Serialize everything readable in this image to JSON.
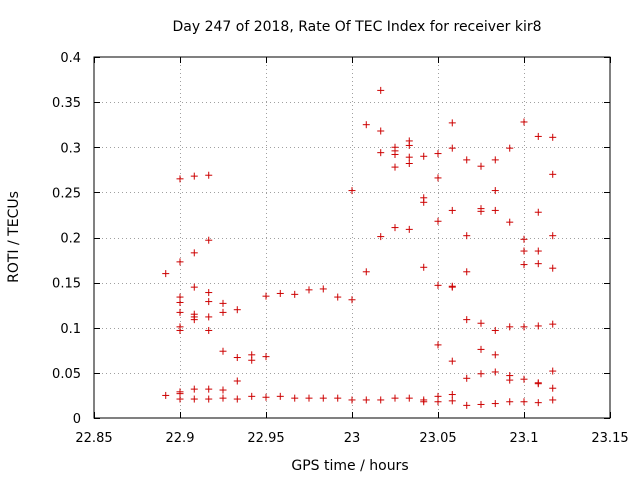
{
  "chart_data": {
    "type": "scatter",
    "title": "Day 247 of 2018, Rate Of TEC Index for receiver kir8",
    "xlabel": "GPS time / hours",
    "ylabel": "ROTI / TECUs",
    "xlim": [
      22.85,
      23.15
    ],
    "ylim": [
      0,
      0.4
    ],
    "x_ticks": [
      22.85,
      22.9,
      22.95,
      23.0,
      23.05,
      23.1,
      23.15
    ],
    "x_tick_labels": [
      "22.85",
      "22.9",
      "22.95",
      "23",
      "23.05",
      "23.1",
      "23.15"
    ],
    "y_ticks": [
      0,
      0.05,
      0.1,
      0.15,
      0.2,
      0.25,
      0.3,
      0.35,
      0.4
    ],
    "y_tick_labels": [
      "0",
      "0.05",
      "0.1",
      "0.15",
      "0.2",
      "0.25",
      "0.3",
      "0.35",
      "0.4"
    ],
    "grid": true,
    "marker": "+",
    "marker_color": "#cc0000",
    "series": [
      {
        "name": "kir8",
        "points": [
          [
            22.8917,
            0.16
          ],
          [
            22.8917,
            0.025
          ],
          [
            22.9,
            0.265
          ],
          [
            22.9,
            0.173
          ],
          [
            22.9,
            0.134
          ],
          [
            22.9,
            0.128
          ],
          [
            22.9,
            0.117
          ],
          [
            22.9,
            0.101
          ],
          [
            22.9,
            0.097
          ],
          [
            22.9,
            0.029
          ],
          [
            22.9,
            0.027
          ],
          [
            22.9,
            0.021
          ],
          [
            22.9083,
            0.268
          ],
          [
            22.9083,
            0.183
          ],
          [
            22.9083,
            0.145
          ],
          [
            22.9083,
            0.115
          ],
          [
            22.9083,
            0.112
          ],
          [
            22.9083,
            0.109
          ],
          [
            22.9083,
            0.032
          ],
          [
            22.9083,
            0.021
          ],
          [
            22.9167,
            0.269
          ],
          [
            22.9167,
            0.197
          ],
          [
            22.9167,
            0.139
          ],
          [
            22.9167,
            0.129
          ],
          [
            22.9167,
            0.112
          ],
          [
            22.9167,
            0.097
          ],
          [
            22.9167,
            0.032
          ],
          [
            22.9167,
            0.021
          ],
          [
            22.925,
            0.127
          ],
          [
            22.925,
            0.117
          ],
          [
            22.925,
            0.074
          ],
          [
            22.925,
            0.031
          ],
          [
            22.925,
            0.022
          ],
          [
            22.9333,
            0.12
          ],
          [
            22.9333,
            0.067
          ],
          [
            22.9333,
            0.041
          ],
          [
            22.9333,
            0.021
          ],
          [
            22.9417,
            0.07
          ],
          [
            22.9417,
            0.064
          ],
          [
            22.9417,
            0.024
          ],
          [
            22.95,
            0.135
          ],
          [
            22.95,
            0.068
          ],
          [
            22.95,
            0.023
          ],
          [
            22.9583,
            0.138
          ],
          [
            22.9583,
            0.024
          ],
          [
            22.9667,
            0.137
          ],
          [
            22.9667,
            0.022
          ],
          [
            22.975,
            0.142
          ],
          [
            22.975,
            0.022
          ],
          [
            22.9833,
            0.143
          ],
          [
            22.9833,
            0.022
          ],
          [
            22.9917,
            0.134
          ],
          [
            22.9917,
            0.022
          ],
          [
            23.0,
            0.252
          ],
          [
            23.0,
            0.131
          ],
          [
            23.0,
            0.02
          ],
          [
            23.0083,
            0.325
          ],
          [
            23.0083,
            0.162
          ],
          [
            23.0083,
            0.02
          ],
          [
            23.0167,
            0.363
          ],
          [
            23.0167,
            0.318
          ],
          [
            23.0167,
            0.294
          ],
          [
            23.0167,
            0.201
          ],
          [
            23.0167,
            0.02
          ],
          [
            23.025,
            0.3
          ],
          [
            23.025,
            0.296
          ],
          [
            23.025,
            0.292
          ],
          [
            23.025,
            0.278
          ],
          [
            23.025,
            0.211
          ],
          [
            23.025,
            0.022
          ],
          [
            23.0333,
            0.307
          ],
          [
            23.0333,
            0.302
          ],
          [
            23.0333,
            0.289
          ],
          [
            23.0333,
            0.282
          ],
          [
            23.0333,
            0.209
          ],
          [
            23.0333,
            0.022
          ],
          [
            23.0417,
            0.29
          ],
          [
            23.0417,
            0.244
          ],
          [
            23.0417,
            0.239
          ],
          [
            23.0417,
            0.167
          ],
          [
            23.0417,
            0.02
          ],
          [
            23.0417,
            0.018
          ],
          [
            23.05,
            0.293
          ],
          [
            23.05,
            0.266
          ],
          [
            23.05,
            0.218
          ],
          [
            23.05,
            0.147
          ],
          [
            23.05,
            0.081
          ],
          [
            23.05,
            0.024
          ],
          [
            23.05,
            0.018
          ],
          [
            23.0583,
            0.327
          ],
          [
            23.0583,
            0.299
          ],
          [
            23.0583,
            0.23
          ],
          [
            23.0583,
            0.146
          ],
          [
            23.0583,
            0.145
          ],
          [
            23.0583,
            0.063
          ],
          [
            23.0583,
            0.026
          ],
          [
            23.0583,
            0.019
          ],
          [
            23.0667,
            0.286
          ],
          [
            23.0667,
            0.202
          ],
          [
            23.0667,
            0.162
          ],
          [
            23.0667,
            0.109
          ],
          [
            23.0667,
            0.044
          ],
          [
            23.0667,
            0.014
          ],
          [
            23.075,
            0.279
          ],
          [
            23.075,
            0.232
          ],
          [
            23.075,
            0.229
          ],
          [
            23.075,
            0.105
          ],
          [
            23.075,
            0.076
          ],
          [
            23.075,
            0.049
          ],
          [
            23.075,
            0.015
          ],
          [
            23.0833,
            0.286
          ],
          [
            23.0833,
            0.252
          ],
          [
            23.0833,
            0.23
          ],
          [
            23.0833,
            0.097
          ],
          [
            23.0833,
            0.07
          ],
          [
            23.0833,
            0.051
          ],
          [
            23.0833,
            0.016
          ],
          [
            23.0917,
            0.299
          ],
          [
            23.0917,
            0.217
          ],
          [
            23.0917,
            0.101
          ],
          [
            23.0917,
            0.047
          ],
          [
            23.0917,
            0.042
          ],
          [
            23.0917,
            0.018
          ],
          [
            23.1,
            0.328
          ],
          [
            23.1,
            0.198
          ],
          [
            23.1,
            0.185
          ],
          [
            23.1,
            0.17
          ],
          [
            23.1,
            0.101
          ],
          [
            23.1,
            0.043
          ],
          [
            23.1,
            0.018
          ],
          [
            23.1083,
            0.312
          ],
          [
            23.1083,
            0.228
          ],
          [
            23.1083,
            0.185
          ],
          [
            23.1083,
            0.171
          ],
          [
            23.1083,
            0.102
          ],
          [
            23.1083,
            0.039
          ],
          [
            23.1083,
            0.038
          ],
          [
            23.1083,
            0.017
          ],
          [
            23.1167,
            0.311
          ],
          [
            23.1167,
            0.27
          ],
          [
            23.1167,
            0.202
          ],
          [
            23.1167,
            0.166
          ],
          [
            23.1167,
            0.104
          ],
          [
            23.1167,
            0.052
          ],
          [
            23.1167,
            0.033
          ],
          [
            23.1167,
            0.02
          ]
        ]
      }
    ]
  }
}
